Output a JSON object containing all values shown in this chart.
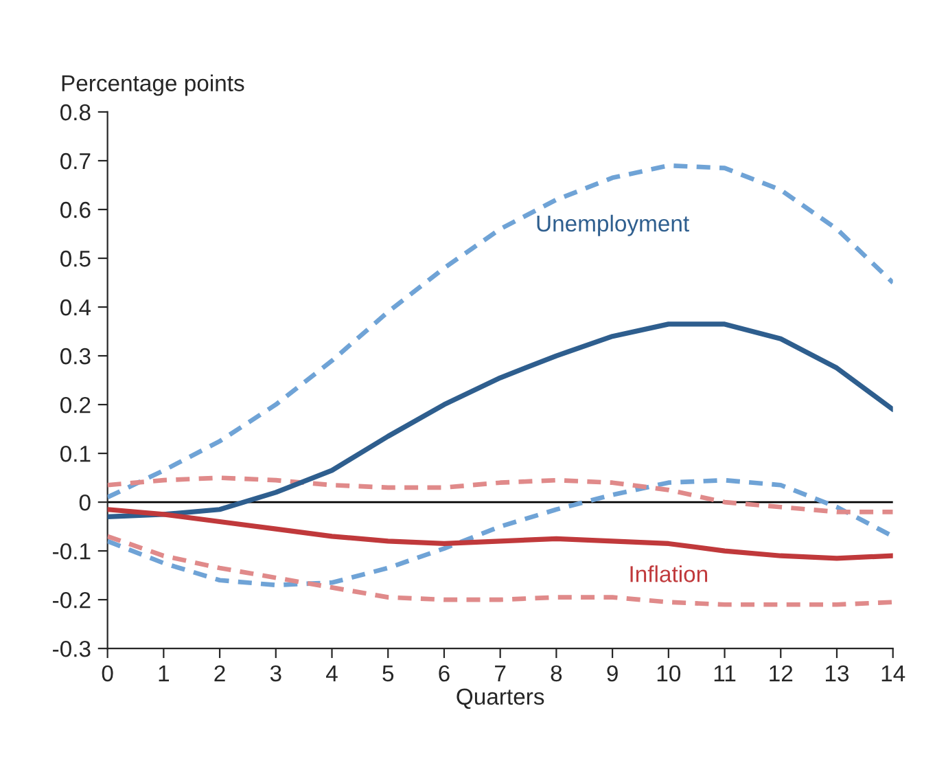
{
  "chart_data": {
    "type": "line",
    "ylabel": "Percentage points",
    "xlabel": "Quarters",
    "x": [
      0,
      1,
      2,
      3,
      4,
      5,
      6,
      7,
      8,
      9,
      10,
      11,
      12,
      13,
      14
    ],
    "series": [
      {
        "color": "#6fa3d6",
        "line_style": "dashed",
        "values": [
          0.01,
          0.065,
          0.125,
          0.2,
          0.29,
          0.39,
          0.48,
          0.56,
          0.62,
          0.665,
          0.69,
          0.685,
          0.64,
          0.56,
          0.45
        ]
      },
      {
        "color": "#6fa3d6",
        "line_style": "dashed",
        "values": [
          -0.08,
          -0.125,
          -0.16,
          -0.17,
          -0.165,
          -0.135,
          -0.095,
          -0.05,
          -0.015,
          0.015,
          0.04,
          0.045,
          0.035,
          -0.01,
          -0.07
        ]
      },
      {
        "color": "#e08a8a",
        "line_style": "dashed",
        "values": [
          0.035,
          0.045,
          0.05,
          0.045,
          0.035,
          0.03,
          0.03,
          0.04,
          0.045,
          0.04,
          0.025,
          0.0,
          -0.01,
          -0.02,
          -0.02
        ]
      },
      {
        "color": "#e08a8a",
        "line_style": "dashed",
        "values": [
          -0.07,
          -0.11,
          -0.135,
          -0.155,
          -0.175,
          -0.195,
          -0.2,
          -0.2,
          -0.195,
          -0.195,
          -0.205,
          -0.21,
          -0.21,
          -0.21,
          -0.205
        ]
      },
      {
        "name": "Unemployment",
        "color": "#2e5e8e",
        "line_style": "solid",
        "values": [
          -0.03,
          -0.025,
          -0.015,
          0.02,
          0.065,
          0.135,
          0.2,
          0.255,
          0.3,
          0.34,
          0.365,
          0.365,
          0.335,
          0.275,
          0.19
        ]
      },
      {
        "name": "Inflation",
        "color": "#c0393b",
        "line_style": "solid",
        "values": [
          -0.015,
          -0.025,
          -0.04,
          -0.055,
          -0.07,
          -0.08,
          -0.085,
          -0.08,
          -0.075,
          -0.08,
          -0.085,
          -0.1,
          -0.11,
          -0.115,
          -0.11
        ]
      }
    ],
    "xlim": [
      0,
      14
    ],
    "xticks": [
      0,
      1,
      2,
      3,
      4,
      5,
      6,
      7,
      8,
      9,
      10,
      11,
      12,
      13,
      14
    ],
    "ylim": [
      -0.3,
      0.8
    ],
    "yticks": [
      -0.3,
      -0.2,
      -0.1,
      0,
      0.1,
      0.2,
      0.3,
      0.4,
      0.5,
      0.6,
      0.7,
      0.8
    ],
    "ref_lines": [
      {
        "axis": "y",
        "value": 0,
        "color": "#000000"
      }
    ],
    "grid": false,
    "legend": false
  }
}
